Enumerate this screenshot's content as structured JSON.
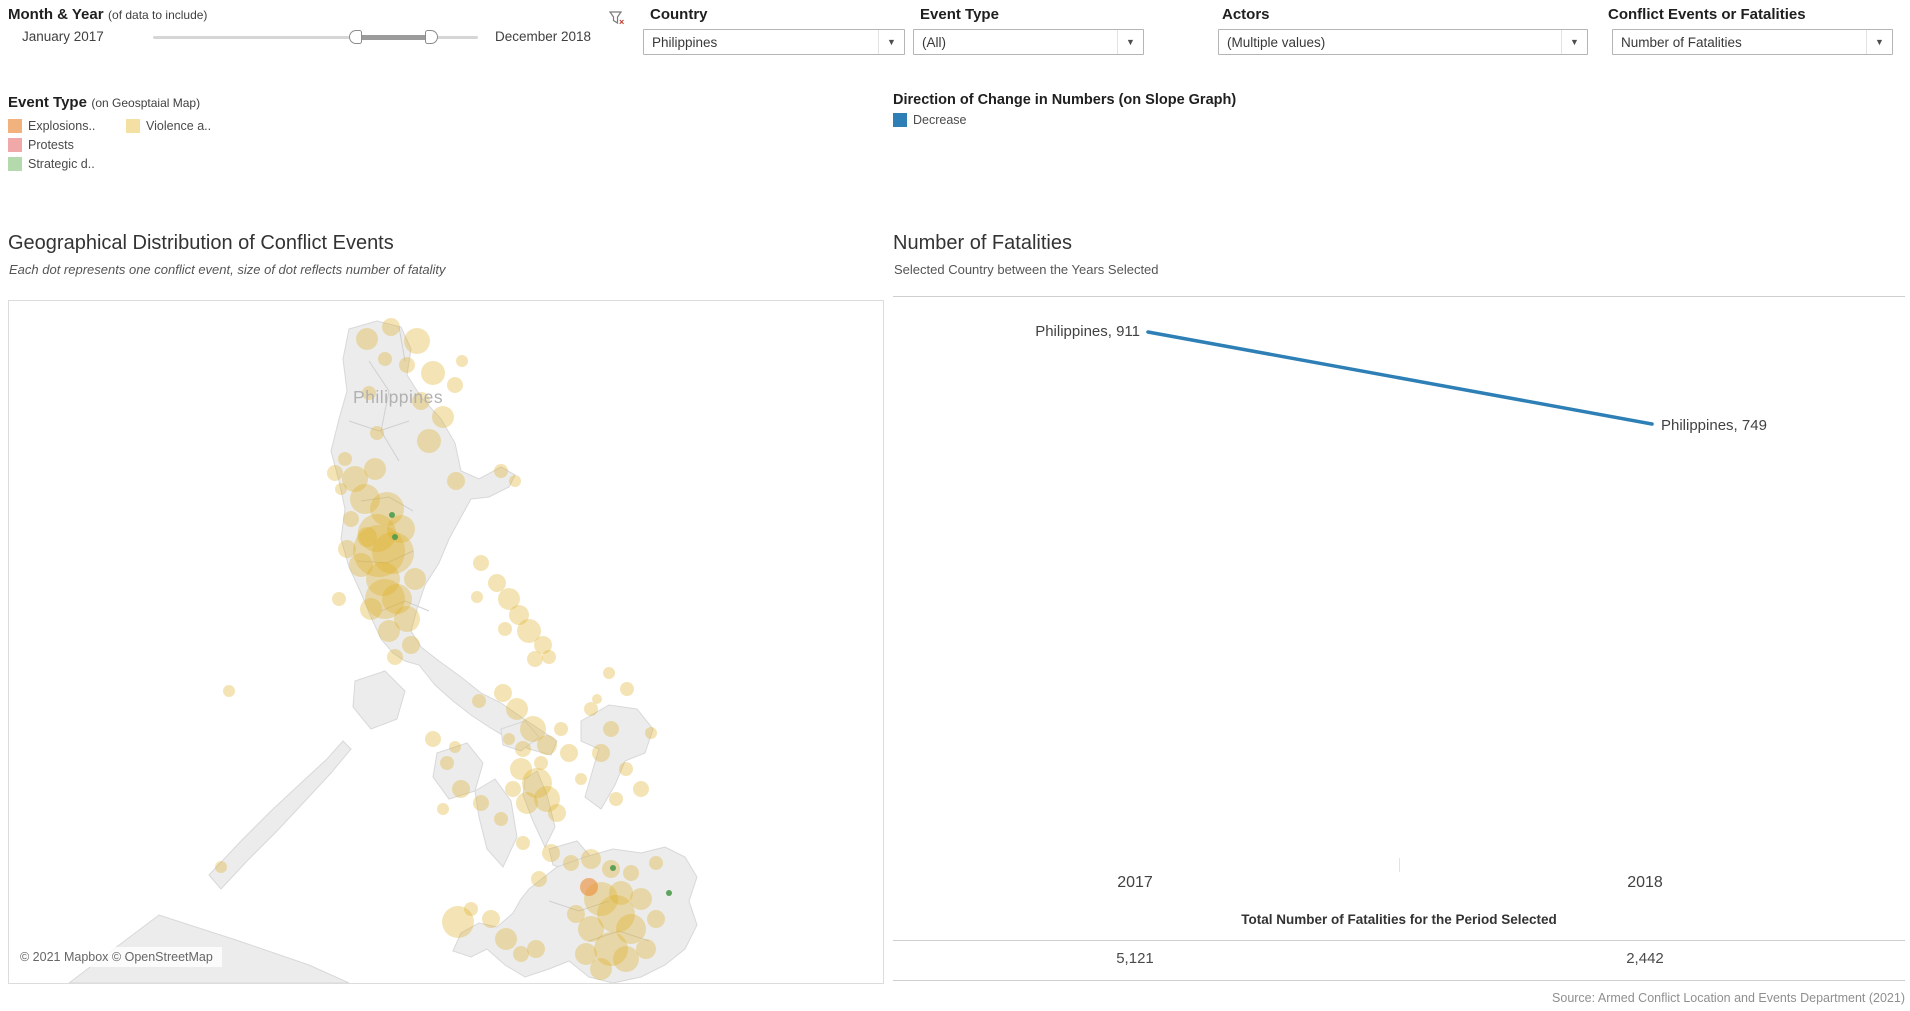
{
  "filters": {
    "month_year": {
      "label": "Month & Year",
      "note": "(of data to include)",
      "start": "January 2017",
      "end": "December 2018"
    },
    "country": {
      "label": "Country",
      "value": "Philippines"
    },
    "event_type": {
      "label": "Event Type",
      "value": "(All)"
    },
    "actors": {
      "label": "Actors",
      "value": "(Multiple values)"
    },
    "metric": {
      "label": "Conflict Events or Fatalities",
      "value": "Number of Fatalities"
    }
  },
  "legends": {
    "event_type": {
      "title": "Event Type",
      "note": "(on Geosptaial Map)",
      "items": [
        {
          "label": "Explosions..",
          "color": "#F1B27E"
        },
        {
          "label": "Violence a..",
          "color": "#F5E0A3"
        },
        {
          "label": "Protests",
          "color": "#F1A8A9"
        },
        {
          "label": "Strategic d..",
          "color": "#B3D9AD"
        }
      ]
    },
    "direction": {
      "title": "Direction of Change in Numbers (on Slope Graph)",
      "items": [
        {
          "label": "Decrease",
          "color": "#2D7FB5"
        }
      ]
    }
  },
  "map_panel": {
    "country_label": "Philippines",
    "attribution": "© 2021 Mapbox © OpenStreetMap"
  },
  "chart_data": [
    {
      "type": "line",
      "subtype": "slope",
      "title": "Number of Fatalities",
      "subtitle": "Selected Country between the Years Selected",
      "x": [
        "2017",
        "2018"
      ],
      "series": [
        {
          "name": "Philippines",
          "values": [
            911,
            749
          ],
          "direction": "Decrease",
          "color": "#2D7FB5"
        }
      ],
      "point_labels": {
        "left": "Philippines, 911",
        "right": "Philippines, 749"
      },
      "legend_position": "top"
    },
    {
      "type": "table",
      "title": "Total Number of Fatalities for the Period Selected",
      "categories": [
        "2017",
        "2018"
      ],
      "values": [
        "5,121",
        "2,442"
      ],
      "values_numeric": [
        5121,
        2442
      ]
    },
    {
      "type": "scatter",
      "title": "Geographical Distribution of Conflict Events",
      "subtitle": "Each dot represents one conflict event, size of dot reflects number of fatality",
      "dot_colors": {
        "yellow": "#DFAE1F",
        "orange": "#EC8C33",
        "green": "#4E9B4E"
      },
      "dot_opacity": {
        "yellow": 0.33,
        "orange": 0.6,
        "green": 0.9
      },
      "dots": {
        "yellow": [
          [
            358,
            38,
            11
          ],
          [
            382,
            26,
            9
          ],
          [
            408,
            40,
            13
          ],
          [
            424,
            72,
            12
          ],
          [
            412,
            100,
            9
          ],
          [
            360,
            92,
            7
          ],
          [
            434,
            116,
            11
          ],
          [
            420,
            140,
            12
          ],
          [
            368,
            132,
            7
          ],
          [
            446,
            84,
            8
          ],
          [
            398,
            64,
            8
          ],
          [
            376,
            58,
            7
          ],
          [
            453,
            60,
            6
          ],
          [
            346,
            178,
            13
          ],
          [
            366,
            168,
            11
          ],
          [
            356,
            198,
            15
          ],
          [
            378,
            208,
            17
          ],
          [
            368,
            232,
            19
          ],
          [
            384,
            252,
            21
          ],
          [
            374,
            278,
            17
          ],
          [
            388,
            298,
            15
          ],
          [
            362,
            308,
            11
          ],
          [
            338,
            248,
            9
          ],
          [
            342,
            218,
            8
          ],
          [
            398,
            318,
            13
          ],
          [
            380,
            330,
            11
          ],
          [
            336,
            158,
            7
          ],
          [
            332,
            188,
            6
          ],
          [
            406,
            278,
            11
          ],
          [
            392,
            228,
            14
          ],
          [
            352,
            264,
            12
          ],
          [
            326,
            172,
            8
          ],
          [
            330,
            298,
            7
          ],
          [
            402,
            344,
            9
          ],
          [
            386,
            356,
            8
          ],
          [
            370,
            250,
            26
          ],
          [
            376,
            298,
            20
          ],
          [
            358,
            236,
            10
          ],
          [
            447,
            180,
            9
          ],
          [
            492,
            170,
            7
          ],
          [
            506,
            180,
            6
          ],
          [
            472,
            262,
            8
          ],
          [
            488,
            282,
            9
          ],
          [
            500,
            298,
            11
          ],
          [
            510,
            314,
            10
          ],
          [
            520,
            330,
            12
          ],
          [
            534,
            344,
            9
          ],
          [
            496,
            328,
            7
          ],
          [
            526,
            358,
            8
          ],
          [
            468,
            296,
            6
          ],
          [
            540,
            356,
            7
          ],
          [
            600,
            372,
            6
          ],
          [
            618,
            388,
            7
          ],
          [
            588,
            398,
            5
          ],
          [
            642,
            432,
            6
          ],
          [
            494,
            392,
            9
          ],
          [
            508,
            408,
            11
          ],
          [
            524,
            428,
            13
          ],
          [
            538,
            444,
            10
          ],
          [
            514,
            448,
            8
          ],
          [
            552,
            428,
            7
          ],
          [
            500,
            438,
            6
          ],
          [
            560,
            452,
            9
          ],
          [
            470,
            400,
            7
          ],
          [
            424,
            438,
            8
          ],
          [
            438,
            462,
            7
          ],
          [
            452,
            488,
            9
          ],
          [
            472,
            502,
            8
          ],
          [
            434,
            508,
            6
          ],
          [
            492,
            518,
            7
          ],
          [
            446,
            446,
            6
          ],
          [
            512,
            468,
            11
          ],
          [
            528,
            482,
            15
          ],
          [
            538,
            498,
            13
          ],
          [
            518,
            502,
            11
          ],
          [
            548,
            512,
            9
          ],
          [
            504,
            488,
            8
          ],
          [
            532,
            462,
            7
          ],
          [
            582,
            408,
            7
          ],
          [
            602,
            428,
            8
          ],
          [
            592,
            452,
            9
          ],
          [
            617,
            468,
            7
          ],
          [
            632,
            488,
            8
          ],
          [
            572,
            478,
            6
          ],
          [
            607,
            498,
            7
          ],
          [
            542,
            552,
            9
          ],
          [
            562,
            562,
            8
          ],
          [
            582,
            558,
            10
          ],
          [
            602,
            568,
            9
          ],
          [
            622,
            572,
            8
          ],
          [
            647,
            562,
            7
          ],
          [
            514,
            542,
            7
          ],
          [
            530,
            578,
            8
          ],
          [
            592,
            598,
            17
          ],
          [
            607,
            613,
            19
          ],
          [
            622,
            628,
            15
          ],
          [
            582,
            628,
            13
          ],
          [
            602,
            648,
            17
          ],
          [
            617,
            658,
            13
          ],
          [
            577,
            653,
            11
          ],
          [
            632,
            598,
            11
          ],
          [
            647,
            618,
            9
          ],
          [
            592,
            668,
            11
          ],
          [
            567,
            613,
            9
          ],
          [
            637,
            648,
            10
          ],
          [
            612,
            592,
            12
          ],
          [
            482,
            618,
            9
          ],
          [
            497,
            638,
            11
          ],
          [
            512,
            653,
            8
          ],
          [
            462,
            608,
            7
          ],
          [
            449,
            621,
            16
          ],
          [
            527,
            648,
            9
          ],
          [
            212,
            566,
            6
          ],
          [
            220,
            390,
            6
          ]
        ],
        "orange": [
          [
            580,
            586,
            9
          ]
        ],
        "green": [
          [
            383,
            214,
            3
          ],
          [
            386,
            236,
            3
          ],
          [
            604,
            567,
            3
          ],
          [
            660,
            592,
            3
          ]
        ]
      }
    }
  ],
  "footer": {
    "source": "Source: Armed Conflict Location and Events Department (2021)"
  }
}
